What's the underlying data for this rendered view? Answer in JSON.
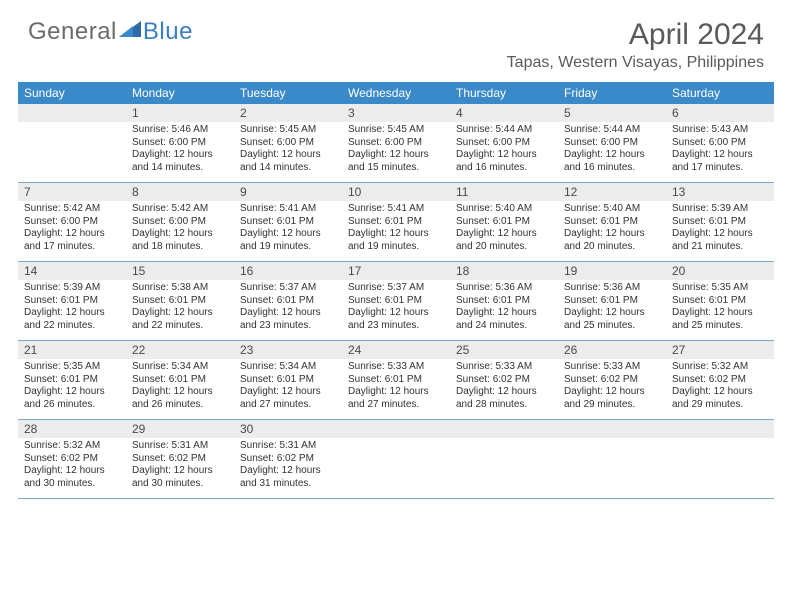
{
  "logo": {
    "text_a": "General",
    "text_b": "Blue"
  },
  "title": "April 2024",
  "location": "Tapas, Western Visayas, Philippines",
  "colors": {
    "header_bg": "#3a89c9",
    "header_text": "#ffffff",
    "daynum_bg": "#ececec",
    "border": "#7aa8d4",
    "logo_gray": "#6b6b6b",
    "logo_blue": "#3a7fc4",
    "body_text": "#333333"
  },
  "day_names": [
    "Sunday",
    "Monday",
    "Tuesday",
    "Wednesday",
    "Thursday",
    "Friday",
    "Saturday"
  ],
  "weeks": [
    [
      {
        "num": "",
        "sunrise": "",
        "sunset": "",
        "daylight": ""
      },
      {
        "num": "1",
        "sunrise": "Sunrise: 5:46 AM",
        "sunset": "Sunset: 6:00 PM",
        "daylight": "Daylight: 12 hours and 14 minutes."
      },
      {
        "num": "2",
        "sunrise": "Sunrise: 5:45 AM",
        "sunset": "Sunset: 6:00 PM",
        "daylight": "Daylight: 12 hours and 14 minutes."
      },
      {
        "num": "3",
        "sunrise": "Sunrise: 5:45 AM",
        "sunset": "Sunset: 6:00 PM",
        "daylight": "Daylight: 12 hours and 15 minutes."
      },
      {
        "num": "4",
        "sunrise": "Sunrise: 5:44 AM",
        "sunset": "Sunset: 6:00 PM",
        "daylight": "Daylight: 12 hours and 16 minutes."
      },
      {
        "num": "5",
        "sunrise": "Sunrise: 5:44 AM",
        "sunset": "Sunset: 6:00 PM",
        "daylight": "Daylight: 12 hours and 16 minutes."
      },
      {
        "num": "6",
        "sunrise": "Sunrise: 5:43 AM",
        "sunset": "Sunset: 6:00 PM",
        "daylight": "Daylight: 12 hours and 17 minutes."
      }
    ],
    [
      {
        "num": "7",
        "sunrise": "Sunrise: 5:42 AM",
        "sunset": "Sunset: 6:00 PM",
        "daylight": "Daylight: 12 hours and 17 minutes."
      },
      {
        "num": "8",
        "sunrise": "Sunrise: 5:42 AM",
        "sunset": "Sunset: 6:00 PM",
        "daylight": "Daylight: 12 hours and 18 minutes."
      },
      {
        "num": "9",
        "sunrise": "Sunrise: 5:41 AM",
        "sunset": "Sunset: 6:01 PM",
        "daylight": "Daylight: 12 hours and 19 minutes."
      },
      {
        "num": "10",
        "sunrise": "Sunrise: 5:41 AM",
        "sunset": "Sunset: 6:01 PM",
        "daylight": "Daylight: 12 hours and 19 minutes."
      },
      {
        "num": "11",
        "sunrise": "Sunrise: 5:40 AM",
        "sunset": "Sunset: 6:01 PM",
        "daylight": "Daylight: 12 hours and 20 minutes."
      },
      {
        "num": "12",
        "sunrise": "Sunrise: 5:40 AM",
        "sunset": "Sunset: 6:01 PM",
        "daylight": "Daylight: 12 hours and 20 minutes."
      },
      {
        "num": "13",
        "sunrise": "Sunrise: 5:39 AM",
        "sunset": "Sunset: 6:01 PM",
        "daylight": "Daylight: 12 hours and 21 minutes."
      }
    ],
    [
      {
        "num": "14",
        "sunrise": "Sunrise: 5:39 AM",
        "sunset": "Sunset: 6:01 PM",
        "daylight": "Daylight: 12 hours and 22 minutes."
      },
      {
        "num": "15",
        "sunrise": "Sunrise: 5:38 AM",
        "sunset": "Sunset: 6:01 PM",
        "daylight": "Daylight: 12 hours and 22 minutes."
      },
      {
        "num": "16",
        "sunrise": "Sunrise: 5:37 AM",
        "sunset": "Sunset: 6:01 PM",
        "daylight": "Daylight: 12 hours and 23 minutes."
      },
      {
        "num": "17",
        "sunrise": "Sunrise: 5:37 AM",
        "sunset": "Sunset: 6:01 PM",
        "daylight": "Daylight: 12 hours and 23 minutes."
      },
      {
        "num": "18",
        "sunrise": "Sunrise: 5:36 AM",
        "sunset": "Sunset: 6:01 PM",
        "daylight": "Daylight: 12 hours and 24 minutes."
      },
      {
        "num": "19",
        "sunrise": "Sunrise: 5:36 AM",
        "sunset": "Sunset: 6:01 PM",
        "daylight": "Daylight: 12 hours and 25 minutes."
      },
      {
        "num": "20",
        "sunrise": "Sunrise: 5:35 AM",
        "sunset": "Sunset: 6:01 PM",
        "daylight": "Daylight: 12 hours and 25 minutes."
      }
    ],
    [
      {
        "num": "21",
        "sunrise": "Sunrise: 5:35 AM",
        "sunset": "Sunset: 6:01 PM",
        "daylight": "Daylight: 12 hours and 26 minutes."
      },
      {
        "num": "22",
        "sunrise": "Sunrise: 5:34 AM",
        "sunset": "Sunset: 6:01 PM",
        "daylight": "Daylight: 12 hours and 26 minutes."
      },
      {
        "num": "23",
        "sunrise": "Sunrise: 5:34 AM",
        "sunset": "Sunset: 6:01 PM",
        "daylight": "Daylight: 12 hours and 27 minutes."
      },
      {
        "num": "24",
        "sunrise": "Sunrise: 5:33 AM",
        "sunset": "Sunset: 6:01 PM",
        "daylight": "Daylight: 12 hours and 27 minutes."
      },
      {
        "num": "25",
        "sunrise": "Sunrise: 5:33 AM",
        "sunset": "Sunset: 6:02 PM",
        "daylight": "Daylight: 12 hours and 28 minutes."
      },
      {
        "num": "26",
        "sunrise": "Sunrise: 5:33 AM",
        "sunset": "Sunset: 6:02 PM",
        "daylight": "Daylight: 12 hours and 29 minutes."
      },
      {
        "num": "27",
        "sunrise": "Sunrise: 5:32 AM",
        "sunset": "Sunset: 6:02 PM",
        "daylight": "Daylight: 12 hours and 29 minutes."
      }
    ],
    [
      {
        "num": "28",
        "sunrise": "Sunrise: 5:32 AM",
        "sunset": "Sunset: 6:02 PM",
        "daylight": "Daylight: 12 hours and 30 minutes."
      },
      {
        "num": "29",
        "sunrise": "Sunrise: 5:31 AM",
        "sunset": "Sunset: 6:02 PM",
        "daylight": "Daylight: 12 hours and 30 minutes."
      },
      {
        "num": "30",
        "sunrise": "Sunrise: 5:31 AM",
        "sunset": "Sunset: 6:02 PM",
        "daylight": "Daylight: 12 hours and 31 minutes."
      },
      {
        "num": "",
        "sunrise": "",
        "sunset": "",
        "daylight": ""
      },
      {
        "num": "",
        "sunrise": "",
        "sunset": "",
        "daylight": ""
      },
      {
        "num": "",
        "sunrise": "",
        "sunset": "",
        "daylight": ""
      },
      {
        "num": "",
        "sunrise": "",
        "sunset": "",
        "daylight": ""
      }
    ]
  ]
}
